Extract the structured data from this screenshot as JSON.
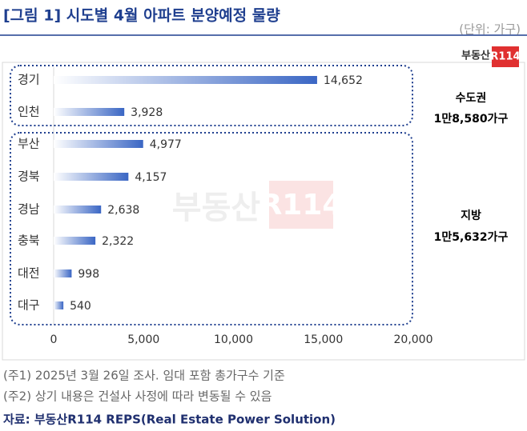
{
  "chart_data": {
    "type": "bar",
    "orientation": "horizontal",
    "title": "[그림 1] 시도별 4월 아파트 분양예정 물량",
    "unit": "(단위: 가구)",
    "logo": {
      "text": "부동산",
      "badge": "R114"
    },
    "watermark": {
      "text": "부동산",
      "badge": "R114"
    },
    "categories": [
      "경기",
      "인천",
      "부산",
      "경북",
      "경남",
      "충북",
      "대전",
      "대구"
    ],
    "values": [
      14652,
      3928,
      4977,
      4157,
      2638,
      2322,
      998,
      540
    ],
    "value_labels": [
      "14,652",
      "3,928",
      "4,977",
      "4,157",
      "2,638",
      "2,322",
      "998",
      "540"
    ],
    "color": "#3a66c4",
    "xlim": [
      0,
      20000
    ],
    "xticks": [
      0,
      {
        "value": 5000,
        "label": "5,000"
      },
      {
        "value": 10000,
        "label": "10,000"
      },
      {
        "value": 15000,
        "label": "15,000"
      },
      {
        "value": 20000,
        "label": "20,000"
      }
    ],
    "groups": [
      {
        "label": "수도권",
        "total": "1만8,580가구"
      },
      {
        "label": "지방",
        "total": "1만5,632가구"
      }
    ],
    "notes": [
      "(주1) 2025년 3월 26일 조사. 임대 포함 총가구수 기준",
      "(주2) 상기 내용은 건설사 사정에 따라 변동될 수 있음"
    ],
    "source": "자료: 부동산R114 REPS(Real Estate Power Solution)"
  }
}
